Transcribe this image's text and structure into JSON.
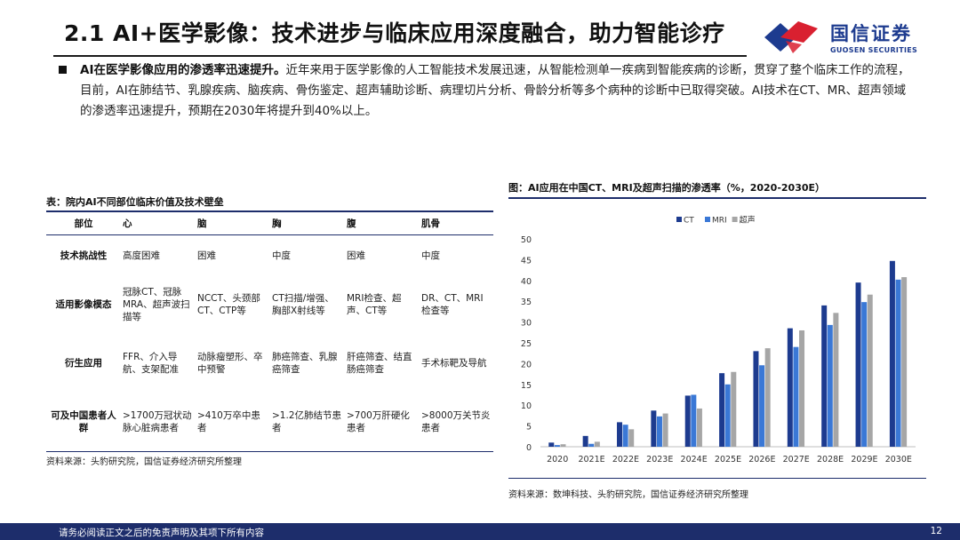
{
  "header": {
    "title": "2.1 AI+医学影像：技术进步与临床应用深度融合，助力智能诊疗",
    "logo_cn": "国信证券",
    "logo_en": "GUOSEN SECURITIES"
  },
  "intro": {
    "lead": "AI在医学影像应用的渗透率迅速提升。",
    "body": "近年来用于医学影像的人工智能技术发展迅速，从智能检测单一疾病到智能疾病的诊断，贯穿了整个临床工作的流程，目前，AI在肺结节、乳腺疾病、脑疾病、骨伤鉴定、超声辅助诊断、病理切片分析、骨龄分析等多个病种的诊断中已取得突破。AI技术在CT、MR、超声领域的渗透率迅速提升，预期在2030年将提升到40%以上。"
  },
  "table": {
    "title": "表：院内AI不同部位临床价值及技术壁垒",
    "columns": [
      "部位",
      "心",
      "脑",
      "胸",
      "腹",
      "肌骨"
    ],
    "rows": [
      {
        "label": "技术挑战性",
        "cells": [
          "高度困难",
          "困难",
          "中度",
          "困难",
          "中度"
        ]
      },
      {
        "label": "适用影像模态",
        "cells": [
          "冠脉CT、冠脉MRA、超声波扫描等",
          "NCCT、头颈部CT、CTP等",
          "CT扫描/增强、胸部X射线等",
          "MRI检查、超声、CT等",
          "DR、CT、MRI检查等"
        ]
      },
      {
        "label": "衍生应用",
        "cells": [
          "FFR、介入导航、支架配准",
          "动脉瘤塑形、卒中预警",
          "肺癌筛查、乳腺癌筛查",
          "肝癌筛查、结直肠癌筛查",
          "手术标靶及导航"
        ]
      },
      {
        "label": "可及中国患者人群",
        "cells": [
          ">1700万冠状动脉心脏病患者",
          ">410万卒中患者",
          ">1.2亿肺结节患者",
          ">700万肝硬化患者",
          ">8000万关节炎患者"
        ]
      }
    ],
    "source": "资料来源：头豹研究院，国信证券经济研究所整理"
  },
  "chart": {
    "title": "图：AI应用在中国CT、MRI及超声扫描的渗透率（%，2020-2030E）",
    "source": "资料来源：数坤科技、头豹研究院，国信证券经济研究所整理"
  },
  "chart_data": {
    "type": "bar",
    "categories": [
      "2020",
      "2021E",
      "2022E",
      "2023E",
      "2024E",
      "2025E",
      "2026E",
      "2027E",
      "2028E",
      "2029E",
      "2030E"
    ],
    "series": [
      {
        "name": "CT",
        "color": "#1d3b8f",
        "values": [
          1.0,
          2.6,
          5.9,
          8.7,
          12.3,
          17.7,
          23.0,
          28.5,
          34.0,
          39.5,
          44.7
        ]
      },
      {
        "name": "MRI",
        "color": "#3a78d6",
        "values": [
          0.4,
          0.7,
          5.3,
          7.3,
          12.5,
          15.0,
          19.6,
          24.0,
          29.3,
          34.8,
          40.2
        ]
      },
      {
        "name": "超声",
        "color": "#a6a6a6",
        "values": [
          0.6,
          1.2,
          4.2,
          8.0,
          9.2,
          18.0,
          23.7,
          28.0,
          32.2,
          36.6,
          40.8
        ]
      }
    ],
    "ylim": [
      0,
      50
    ],
    "yticks": [
      0,
      5,
      10,
      15,
      20,
      25,
      30,
      35,
      40,
      45,
      50
    ],
    "legend": "top-center",
    "grid": false
  },
  "footer": {
    "disclaimer": "请务必阅读正文之后的免责声明及其项下所有内容",
    "page": "12"
  }
}
